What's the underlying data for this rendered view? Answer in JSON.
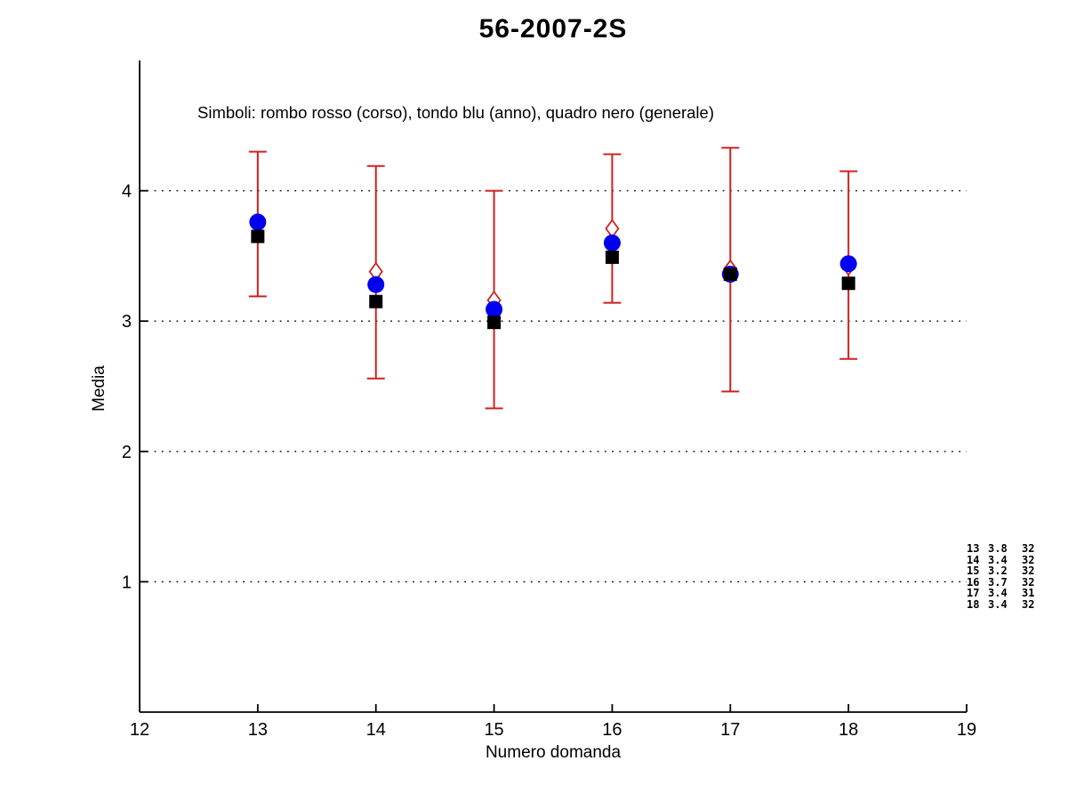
{
  "title": "56-2007-2S",
  "legend_note": "Simboli: rombo rosso (corso), tondo blu (anno), quadro nero (generale)",
  "xlabel": "Numero domanda",
  "ylabel": "Media",
  "annotation": {
    "rows": [
      [
        "13",
        "3.8",
        "32"
      ],
      [
        "14",
        "3.4",
        "32"
      ],
      [
        "15",
        "3.2",
        "32"
      ],
      [
        "16",
        "3.7",
        "32"
      ],
      [
        "17",
        "3.4",
        "31"
      ],
      [
        "18",
        "3.4",
        "32"
      ]
    ]
  },
  "colors": {
    "corso": "#cc2222",
    "anno": "#0000ee",
    "generale": "#000000",
    "axis": "#000000",
    "grid": "#000000"
  },
  "chart_data": {
    "type": "scatter",
    "title": "56-2007-2S",
    "xlabel": "Numero domanda",
    "ylabel": "Media",
    "xlim": [
      12,
      19
    ],
    "ylim": [
      0,
      5
    ],
    "xticks": [
      12,
      13,
      14,
      15,
      16,
      17,
      18,
      19
    ],
    "yticks": [
      1,
      2,
      3,
      4
    ],
    "grid": "horizontal-dotted",
    "x": [
      13,
      14,
      15,
      16,
      17,
      18
    ],
    "series": [
      {
        "name": "corso",
        "marker": "open-diamond",
        "color": "#cc2222",
        "values": [
          3.75,
          3.38,
          3.16,
          3.71,
          3.4,
          3.42
        ],
        "err_high": [
          4.3,
          4.19,
          4.0,
          4.28,
          4.33,
          4.15
        ],
        "err_low": [
          3.19,
          2.56,
          2.33,
          3.14,
          2.46,
          2.71
        ]
      },
      {
        "name": "anno",
        "marker": "filled-circle",
        "color": "#0000ee",
        "values": [
          3.76,
          3.28,
          3.09,
          3.6,
          3.36,
          3.44
        ]
      },
      {
        "name": "generale",
        "marker": "filled-square",
        "color": "#000000",
        "values": [
          3.65,
          3.15,
          2.99,
          3.49,
          3.36,
          3.29
        ]
      }
    ]
  }
}
